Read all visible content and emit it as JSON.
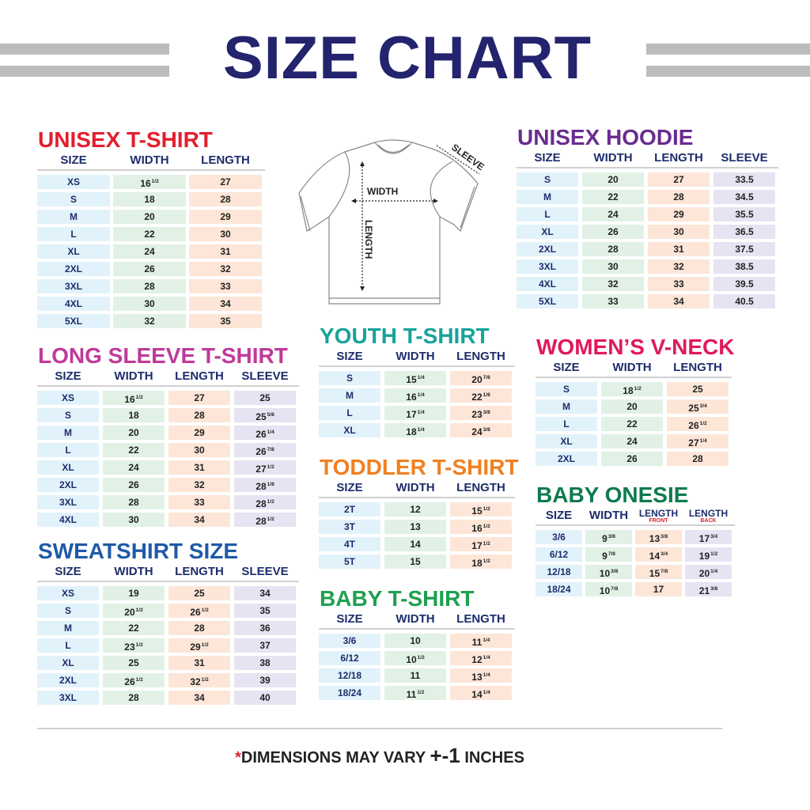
{
  "title": "SIZE CHART",
  "colors": {
    "title": "#23236e",
    "header": "#1d2d6b",
    "size_cell": "#e2f2fb",
    "width_cell": "#e1f1e6",
    "length_cell": "#fde6d8",
    "sleeve_cell": "#e6e3f2"
  },
  "diagram": {
    "width_label": "WIDTH",
    "length_label": "LENGTH",
    "sleeve_label": "SLEEVE"
  },
  "tables": [
    {
      "id": "unisex-tshirt",
      "title": "UNISEX T-SHIRT",
      "color": "#e31e2d",
      "headers": [
        {
          "label": "SIZE"
        },
        {
          "label": "WIDTH"
        },
        {
          "label": "LENGTH"
        }
      ],
      "rows": [
        [
          "XS",
          "16 1/2",
          "27"
        ],
        [
          "S",
          "18",
          "28"
        ],
        [
          "M",
          "20",
          "29"
        ],
        [
          "L",
          "22",
          "30"
        ],
        [
          "XL",
          "24",
          "31"
        ],
        [
          "2XL",
          "26",
          "32"
        ],
        [
          "3XL",
          "28",
          "33"
        ],
        [
          "4XL",
          "30",
          "34"
        ],
        [
          "5XL",
          "32",
          "35"
        ]
      ]
    },
    {
      "id": "unisex-hoodie",
      "title": "UNISEX HOODIE",
      "color": "#6a2c8f",
      "headers": [
        {
          "label": "SIZE"
        },
        {
          "label": "WIDTH"
        },
        {
          "label": "LENGTH"
        },
        {
          "label": "SLEEVE"
        }
      ],
      "rows": [
        [
          "S",
          "20",
          "27",
          "33.5"
        ],
        [
          "M",
          "22",
          "28",
          "34.5"
        ],
        [
          "L",
          "24",
          "29",
          "35.5"
        ],
        [
          "XL",
          "26",
          "30",
          "36.5"
        ],
        [
          "2XL",
          "28",
          "31",
          "37.5"
        ],
        [
          "3XL",
          "30",
          "32",
          "38.5"
        ],
        [
          "4XL",
          "32",
          "33",
          "39.5"
        ],
        [
          "5XL",
          "33",
          "34",
          "40.5"
        ]
      ]
    },
    {
      "id": "long-sleeve",
      "title": "LONG SLEEVE T-SHIRT",
      "color": "#c0399a",
      "headers": [
        {
          "label": "SIZE"
        },
        {
          "label": "WIDTH"
        },
        {
          "label": "LENGTH"
        },
        {
          "label": "SLEEVE"
        }
      ],
      "rows": [
        [
          "XS",
          "16 1/2",
          "27",
          "25"
        ],
        [
          "S",
          "18",
          "28",
          "25 5/8"
        ],
        [
          "M",
          "20",
          "29",
          "26 1/4"
        ],
        [
          "L",
          "22",
          "30",
          "26 7/8"
        ],
        [
          "XL",
          "24",
          "31",
          "27 1/2"
        ],
        [
          "2XL",
          "26",
          "32",
          "28 1/8"
        ],
        [
          "3XL",
          "28",
          "33",
          "28 1/2"
        ],
        [
          "4XL",
          "30",
          "34",
          "28 1/2"
        ]
      ]
    },
    {
      "id": "sweatshirt",
      "title": "SWEATSHIRT SIZE",
      "color": "#1e5aa8",
      "headers": [
        {
          "label": "SIZE"
        },
        {
          "label": "WIDTH"
        },
        {
          "label": "LENGTH"
        },
        {
          "label": "SLEEVE"
        }
      ],
      "rows": [
        [
          "XS",
          "19",
          "25",
          "34"
        ],
        [
          "S",
          "20 1/2",
          "26 1/2",
          "35"
        ],
        [
          "M",
          "22",
          "28",
          "36"
        ],
        [
          "L",
          "23 1/2",
          "29 1/2",
          "37"
        ],
        [
          "XL",
          "25",
          "31",
          "38"
        ],
        [
          "2XL",
          "26 1/2",
          "32 1/2",
          "39"
        ],
        [
          "3XL",
          "28",
          "34",
          "40"
        ]
      ]
    },
    {
      "id": "youth-tshirt",
      "title": "YOUTH T-SHIRT",
      "color": "#17a39a",
      "headers": [
        {
          "label": "SIZE"
        },
        {
          "label": "WIDTH"
        },
        {
          "label": "LENGTH"
        }
      ],
      "rows": [
        [
          "S",
          "15 1/4",
          "20 7/8"
        ],
        [
          "M",
          "16 1/4",
          "22 1/8"
        ],
        [
          "L",
          "17 1/4",
          "23 3/8"
        ],
        [
          "XL",
          "18 1/4",
          "24 3/8"
        ]
      ]
    },
    {
      "id": "toddler-tshirt",
      "title": "TODDLER T-SHIRT",
      "color": "#f08020",
      "headers": [
        {
          "label": "SIZE"
        },
        {
          "label": "WIDTH"
        },
        {
          "label": "LENGTH"
        }
      ],
      "rows": [
        [
          "2T",
          "12",
          "15 1/2"
        ],
        [
          "3T",
          "13",
          "16 1/2"
        ],
        [
          "4T",
          "14",
          "17 1/2"
        ],
        [
          "5T",
          "15",
          "18 1/2"
        ]
      ]
    },
    {
      "id": "baby-tshirt",
      "title": "BABY T-SHIRT",
      "color": "#1ea050",
      "headers": [
        {
          "label": "SIZE"
        },
        {
          "label": "WIDTH"
        },
        {
          "label": "LENGTH"
        }
      ],
      "rows": [
        [
          "3/6",
          "10",
          "11 1/4"
        ],
        [
          "6/12",
          "10 1/2",
          "12 1/4"
        ],
        [
          "12/18",
          "11",
          "13 1/4"
        ],
        [
          "18/24",
          "11 1/2",
          "14 1/4"
        ]
      ]
    },
    {
      "id": "womens-vneck",
      "title": "WOMEN’S V-NECK",
      "color": "#e0195a",
      "headers": [
        {
          "label": "SIZE"
        },
        {
          "label": "WIDTH"
        },
        {
          "label": "LENGTH"
        }
      ],
      "rows": [
        [
          "S",
          "18 1/2",
          "25"
        ],
        [
          "M",
          "20",
          "25 3/4"
        ],
        [
          "L",
          "22",
          "26 1/2"
        ],
        [
          "XL",
          "24",
          "27 1/4"
        ],
        [
          "2XL",
          "26",
          "28"
        ]
      ]
    },
    {
      "id": "baby-onesie",
      "title": "BABY ONESIE",
      "color": "#0e7a50",
      "headers": [
        {
          "label": "SIZE"
        },
        {
          "label": "WIDTH"
        },
        {
          "label": "LENGTH",
          "sub": "FRONT"
        },
        {
          "label": "LENGTH",
          "sub": "BACK"
        }
      ],
      "rows": [
        [
          "3/6",
          "9 3/8",
          "13 3/8",
          "17 3/4"
        ],
        [
          "6/12",
          "9 7/8",
          "14 3/4",
          "19 1/2"
        ],
        [
          "12/18",
          "10 3/8",
          "15 7/8",
          "20 1/4"
        ],
        [
          "18/24",
          "10 7/8",
          "17",
          "21 3/8"
        ]
      ]
    }
  ],
  "footer": {
    "star": "*",
    "text": "DIMENSIONS MAY VARY ",
    "plusminus": "+-1",
    "unit": " INCHES"
  }
}
